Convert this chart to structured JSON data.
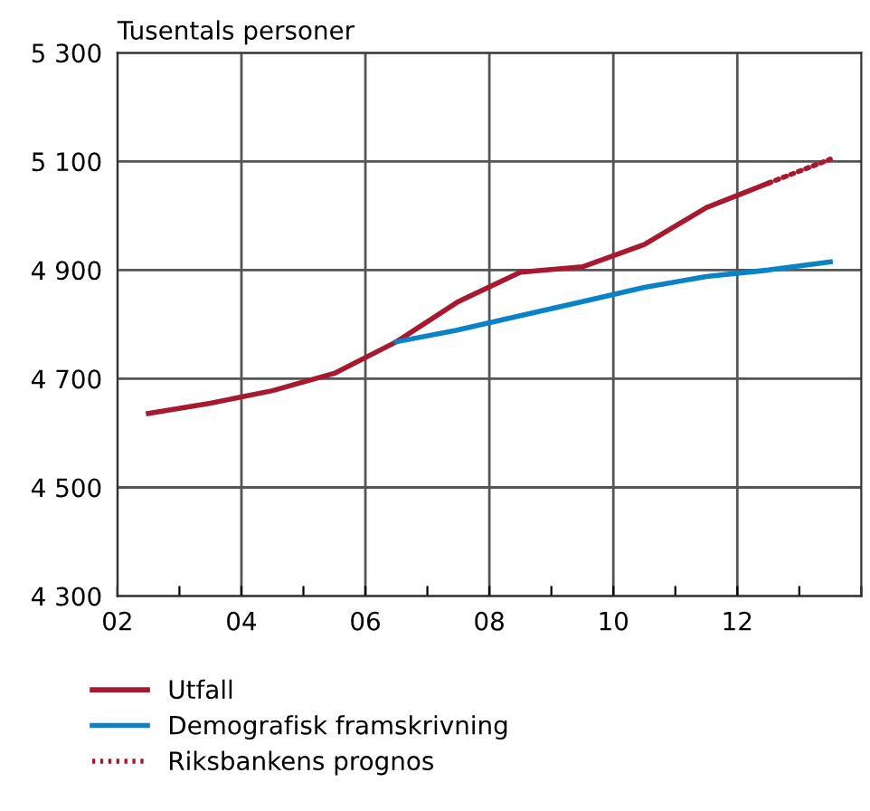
{
  "chart_data": {
    "type": "line",
    "title": "Tusentals personer",
    "x": [
      2.5,
      3.5,
      4.5,
      5.5,
      6.5,
      7.5,
      8.5,
      9.5,
      10.5,
      11.5,
      12.5
    ],
    "series": [
      {
        "name": "Utfall",
        "color": "#a6192e",
        "values": [
          4636,
          4655,
          4678,
          4710,
          4768,
          4842,
          4896,
          4906,
          4947,
          5015,
          5060
        ]
      },
      {
        "name": "Demografisk framskrivning",
        "color": "#0a82c8",
        "x": [
          6.5,
          7.5,
          8.5,
          9.5,
          10.5,
          11.5,
          12.5,
          13.5
        ],
        "values": [
          4768,
          4790,
          4816,
          4842,
          4868,
          4888,
          4900,
          4915
        ]
      },
      {
        "name": "Riksbankens prognos",
        "color": "#a6192e",
        "line_style": "dotted",
        "x": [
          12.5,
          13.5
        ],
        "values": [
          5060,
          5104
        ]
      }
    ],
    "xlim": [
      2,
      14
    ],
    "xticks": [
      {
        "value": 2,
        "label": "02"
      },
      {
        "value": 3,
        "label": null
      },
      {
        "value": 4,
        "label": "04"
      },
      {
        "value": 5,
        "label": null
      },
      {
        "value": 6,
        "label": "06"
      },
      {
        "value": 7,
        "label": null
      },
      {
        "value": 8,
        "label": "08"
      },
      {
        "value": 9,
        "label": null
      },
      {
        "value": 10,
        "label": "10"
      },
      {
        "value": 11,
        "label": null
      },
      {
        "value": 12,
        "label": "12"
      },
      {
        "value": 13,
        "label": null
      },
      {
        "value": 14,
        "label": null
      }
    ],
    "ylim": [
      4300,
      5300
    ],
    "yticks": [
      {
        "value": 4300,
        "label": "4 300"
      },
      {
        "value": 4500,
        "label": "4 500"
      },
      {
        "value": 4700,
        "label": "4 700"
      },
      {
        "value": 4900,
        "label": "4 900"
      },
      {
        "value": 5100,
        "label": "5 100"
      },
      {
        "value": 5300,
        "label": "5 300"
      }
    ],
    "grid": true,
    "legend": "bottom",
    "line_style": "solid",
    "marker": "none"
  }
}
